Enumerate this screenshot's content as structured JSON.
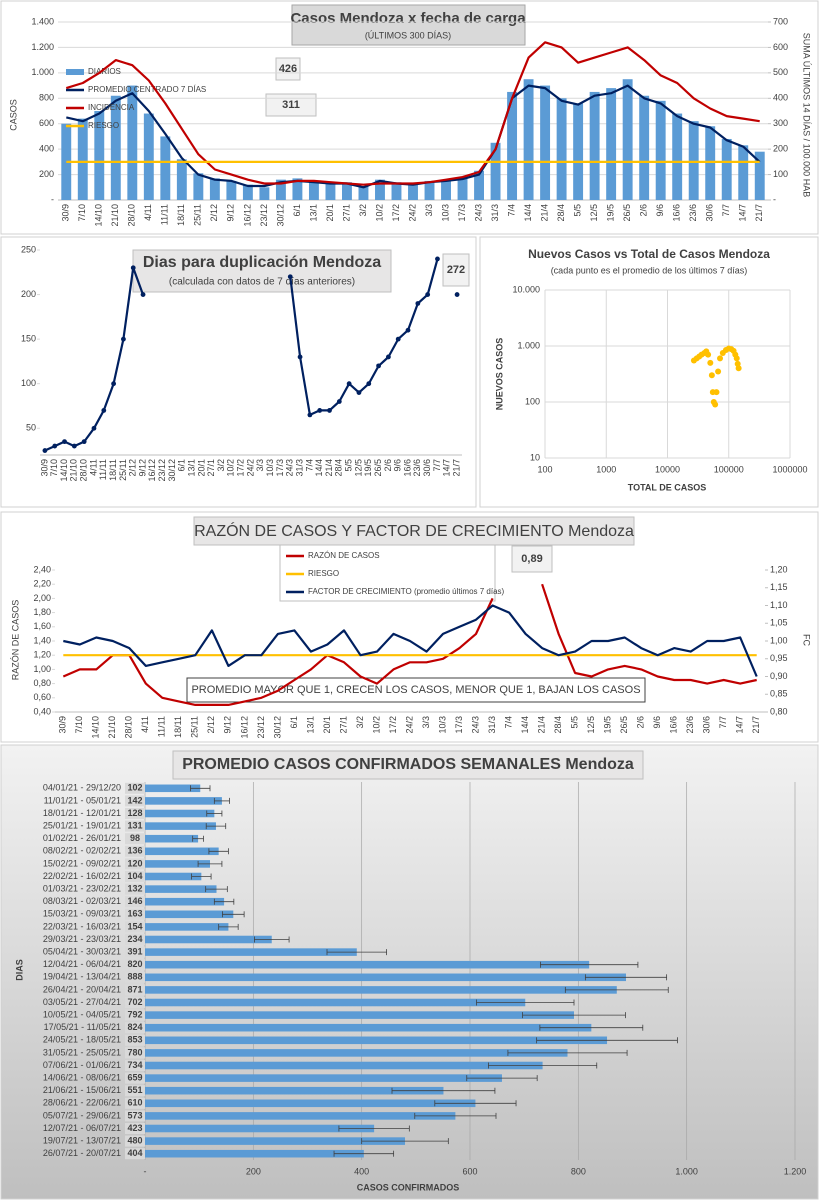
{
  "chart_data": [
    {
      "type": "combo",
      "title": "Casos Mendoza x fecha de carga",
      "subtitle": "(ÚLTIMOS 300 DÍAS)",
      "y_label": "CASOS",
      "y2_label": "SUMA ÚLTIMOS 14 DÍAS / 100.000 HAB",
      "annotations": [
        "426",
        "311"
      ],
      "categories": [
        "30/9",
        "7/10",
        "14/10",
        "21/10",
        "28/10",
        "4/11",
        "11/11",
        "18/11",
        "25/11",
        "2/12",
        "9/12",
        "16/12",
        "23/12",
        "30/12",
        "6/1",
        "13/1",
        "20/1",
        "27/1",
        "3/2",
        "10/2",
        "17/2",
        "24/2",
        "3/3",
        "10/3",
        "17/3",
        "24/3",
        "31/3",
        "7/4",
        "14/4",
        "21/4",
        "28/4",
        "5/5",
        "12/5",
        "19/5",
        "26/5",
        "2/6",
        "9/6",
        "16/6",
        "23/6",
        "30/6",
        "7/7",
        "14/7",
        "21/7"
      ],
      "series": [
        {
          "name": "DIARIOS",
          "type": "bar",
          "color": "#5b9bd5",
          "values": [
            600,
            640,
            700,
            820,
            900,
            680,
            500,
            320,
            210,
            170,
            150,
            120,
            100,
            160,
            170,
            150,
            130,
            140,
            110,
            160,
            140,
            130,
            150,
            160,
            180,
            230,
            450,
            850,
            950,
            900,
            800,
            760,
            850,
            880,
            950,
            820,
            780,
            680,
            620,
            580,
            480,
            430,
            380
          ]
        },
        {
          "name": "PROMEDIO CENTRADO 7 DÍAS",
          "type": "line",
          "color": "#002060",
          "values": [
            650,
            620,
            680,
            780,
            840,
            700,
            520,
            330,
            200,
            160,
            150,
            110,
            110,
            140,
            150,
            140,
            130,
            130,
            100,
            150,
            130,
            120,
            140,
            150,
            165,
            200,
            400,
            800,
            900,
            880,
            780,
            750,
            820,
            840,
            900,
            800,
            760,
            660,
            600,
            570,
            470,
            420,
            300
          ]
        },
        {
          "name": "INCIDENCIA",
          "type": "line",
          "color": "#c00000",
          "axis": "y2",
          "values": [
            440,
            460,
            500,
            550,
            530,
            470,
            380,
            280,
            180,
            120,
            100,
            80,
            65,
            65,
            75,
            75,
            70,
            65,
            60,
            65,
            65,
            65,
            70,
            80,
            90,
            110,
            200,
            400,
            560,
            620,
            600,
            540,
            560,
            580,
            600,
            550,
            490,
            460,
            400,
            360,
            330,
            320,
            310
          ]
        },
        {
          "name": "RIESGO",
          "type": "line",
          "color": "#ffc000",
          "axis": "y2",
          "values": [
            150,
            150,
            150,
            150,
            150,
            150,
            150,
            150,
            150,
            150,
            150,
            150,
            150,
            150,
            150,
            150,
            150,
            150,
            150,
            150,
            150,
            150,
            150,
            150,
            150,
            150,
            150,
            150,
            150,
            150,
            150,
            150,
            150,
            150,
            150,
            150,
            150,
            150,
            150,
            150,
            150,
            150,
            150
          ]
        }
      ],
      "ylim": [
        0,
        1400
      ],
      "yticks": [
        {
          "value": 0,
          "label": "-"
        },
        200,
        400,
        600,
        800,
        {
          "value": 1000,
          "label": "1.000"
        },
        {
          "value": 1200,
          "label": "1.200"
        },
        {
          "value": 1400,
          "label": "1.400"
        }
      ],
      "y2lim": [
        0,
        700
      ],
      "y2ticks": [
        {
          "value": 0,
          "label": "-"
        },
        100,
        200,
        300,
        400,
        500,
        600,
        700
      ],
      "grid": true
    },
    {
      "type": "line",
      "title": "Dias para duplicación Mendoza",
      "subtitle": "(calculada con datos de 7 días anteriores)",
      "annotations": [
        "272"
      ],
      "categories": [
        "30/9",
        "7/10",
        "14/10",
        "21/10",
        "28/10",
        "4/11",
        "11/11",
        "18/11",
        "25/11",
        "2/12",
        "9/12",
        "16/12",
        "23/12",
        "30/12",
        "6/1",
        "13/1",
        "20/1",
        "27/1",
        "3/2",
        "10/2",
        "17/2",
        "24/2",
        "3/3",
        "10/3",
        "17/3",
        "24/3",
        "31/3",
        "7/4",
        "14/4",
        "21/4",
        "28/4",
        "5/5",
        "12/5",
        "19/5",
        "26/5",
        "2/6",
        "9/6",
        "16/6",
        "23/6",
        "30/6",
        "7/7",
        "14/7",
        "21/7"
      ],
      "values": [
        25,
        30,
        35,
        30,
        35,
        50,
        70,
        100,
        150,
        230,
        200,
        null,
        null,
        null,
        null,
        null,
        null,
        null,
        null,
        null,
        null,
        null,
        null,
        null,
        null,
        220,
        130,
        65,
        70,
        70,
        80,
        100,
        90,
        100,
        120,
        130,
        150,
        160,
        190,
        200,
        240,
        null,
        200
      ],
      "color": "#002060",
      "markers": true,
      "ylim": [
        20,
        250
      ],
      "yticks": [
        50,
        100,
        150,
        200,
        250
      ],
      "grid": false
    },
    {
      "type": "scatter",
      "title": "Nuevos Casos vs Total de Casos Mendoza",
      "subtitle": "(cada punto es el promedio de los últimos 7 días)",
      "x_label": "TOTAL DE CASOS",
      "y_label": "NUEVOS CASOS",
      "x": [
        27000,
        30000,
        33000,
        36000,
        40000,
        43000,
        46000,
        50000,
        53000,
        55000,
        57000,
        60000,
        63000,
        67000,
        72000,
        80000,
        90000,
        100000,
        110000,
        120000,
        128000,
        135000,
        140000,
        145000
      ],
      "values": [
        550,
        600,
        650,
        700,
        750,
        800,
        700,
        500,
        300,
        150,
        100,
        90,
        150,
        350,
        600,
        750,
        850,
        900,
        880,
        820,
        700,
        600,
        480,
        400
      ],
      "color": "#ffc000",
      "xlim": [
        100,
        1000000
      ],
      "ylim": [
        10,
        10000
      ],
      "xticks": [
        100,
        1000,
        10000,
        100000,
        1000000
      ],
      "yticks": [
        10,
        100,
        {
          "value": 1000,
          "label": "1.000"
        },
        {
          "value": 10000,
          "label": "10.000"
        }
      ],
      "log_x": true,
      "log_y": true,
      "grid": true
    },
    {
      "type": "line",
      "title": "RAZÓN DE CASOS Y FACTOR DE CRECIMIENTO Mendoza",
      "y_label": "RAZÓN DE CASOS",
      "y2_label": "FC",
      "annotations": [
        "0,89",
        "PROMEDIO MAYOR QUE 1, CRECEN LOS CASOS, MENOR QUE 1, BAJAN LOS CASOS"
      ],
      "categories": [
        "30/9",
        "7/10",
        "14/10",
        "21/10",
        "28/10",
        "4/11",
        "11/11",
        "18/11",
        "25/11",
        "2/12",
        "9/12",
        "16/12",
        "23/12",
        "30/12",
        "6/1",
        "13/1",
        "20/1",
        "27/1",
        "3/2",
        "10/2",
        "17/2",
        "24/2",
        "3/3",
        "10/3",
        "17/3",
        "24/3",
        "31/3",
        "7/4",
        "14/4",
        "21/4",
        "28/4",
        "5/5",
        "12/5",
        "19/5",
        "26/5",
        "2/6",
        "9/6",
        "16/6",
        "23/6",
        "30/6",
        "7/7",
        "14/7",
        "21/7"
      ],
      "series": [
        {
          "name": "RAZÓN DE CASOS",
          "color": "#c00000",
          "values": [
            0.9,
            1.0,
            1.0,
            1.2,
            1.2,
            0.8,
            0.6,
            0.55,
            0.5,
            0.5,
            0.5,
            0.55,
            0.6,
            0.7,
            0.85,
            1.0,
            1.2,
            1.1,
            0.9,
            0.8,
            1.0,
            1.1,
            1.1,
            1.15,
            1.3,
            1.5,
            2.0,
            null,
            null,
            2.2,
            1.5,
            0.95,
            0.9,
            1.0,
            1.05,
            1.0,
            0.9,
            0.85,
            0.85,
            0.8,
            0.85,
            0.8,
            0.85
          ]
        },
        {
          "name": "RIESGO",
          "color": "#ffc000",
          "values": [
            1.2,
            1.2,
            1.2,
            1.2,
            1.2,
            1.2,
            1.2,
            1.2,
            1.2,
            1.2,
            1.2,
            1.2,
            1.2,
            1.2,
            1.2,
            1.2,
            1.2,
            1.2,
            1.2,
            1.2,
            1.2,
            1.2,
            1.2,
            1.2,
            1.2,
            1.2,
            1.2,
            1.2,
            1.2,
            1.2,
            1.2,
            1.2,
            1.2,
            1.2,
            1.2,
            1.2,
            1.2,
            1.2,
            1.2,
            1.2,
            1.2,
            1.2,
            1.2
          ]
        },
        {
          "name": "FACTOR DE CRECIMIENTO (promedio últimos 7 días)",
          "color": "#002060",
          "axis": "y2",
          "values": [
            1.0,
            0.99,
            1.01,
            1.0,
            0.98,
            0.93,
            0.94,
            0.95,
            0.96,
            1.03,
            0.93,
            0.96,
            0.96,
            1.02,
            1.03,
            0.97,
            0.99,
            1.03,
            0.96,
            0.97,
            1.02,
            1.0,
            0.97,
            1.02,
            1.04,
            1.06,
            1.1,
            1.08,
            1.02,
            0.98,
            0.96,
            0.97,
            1.0,
            1.0,
            1.01,
            0.98,
            0.96,
            0.98,
            0.97,
            1.0,
            1.0,
            1.01,
            0.9
          ]
        }
      ],
      "ylim": [
        0.4,
        2.4
      ],
      "yticks": [
        {
          "value": 0.4,
          "label": "0,40"
        },
        {
          "value": 0.6,
          "label": "0,60"
        },
        {
          "value": 0.8,
          "label": "0,80"
        },
        {
          "value": 1.0,
          "label": "1,00"
        },
        {
          "value": 1.2,
          "label": "1,20"
        },
        {
          "value": 1.4,
          "label": "1,40"
        },
        {
          "value": 1.6,
          "label": "1,60"
        },
        {
          "value": 1.8,
          "label": "1,80"
        },
        {
          "value": 2.0,
          "label": "2,00"
        },
        {
          "value": 2.2,
          "label": "2,20"
        },
        {
          "value": 2.4,
          "label": "2,40"
        }
      ],
      "y2lim": [
        0.8,
        1.2
      ],
      "y2ticks": [
        {
          "value": 0.8,
          "label": "0,80"
        },
        {
          "value": 0.85,
          "label": "0,85"
        },
        {
          "value": 0.9,
          "label": "0,90"
        },
        {
          "value": 0.95,
          "label": "0,95"
        },
        {
          "value": 1.0,
          "label": "1,00"
        },
        {
          "value": 1.05,
          "label": "1,05"
        },
        {
          "value": 1.1,
          "label": "1,10"
        },
        {
          "value": 1.15,
          "label": "1,15"
        },
        {
          "value": 1.2,
          "label": "1,20"
        }
      ],
      "grid": false
    },
    {
      "type": "bar",
      "orientation": "horizontal",
      "title": "PROMEDIO CASOS CONFIRMADOS SEMANALES Mendoza",
      "x_label": "CASOS CONFIRMADOS",
      "y_label": "DIAS",
      "categories": [
        "04/01/21 - 29/12/20",
        "11/01/21 - 05/01/21",
        "18/01/21 - 12/01/21",
        "25/01/21 - 19/01/21",
        "01/02/21 - 26/01/21",
        "08/02/21 - 02/02/21",
        "15/02/21 - 09/02/21",
        "22/02/21 - 16/02/21",
        "01/03/21 - 23/02/21",
        "08/03/21 - 02/03/21",
        "15/03/21 - 09/03/21",
        "22/03/21 - 16/03/21",
        "29/03/21 - 23/03/21",
        "05/04/21 - 30/03/21",
        "12/04/21 - 06/04/21",
        "19/04/21 - 13/04/21",
        "26/04/21 - 20/04/21",
        "03/05/21 - 27/04/21",
        "10/05/21 - 04/05/21",
        "17/05/21 - 11/05/21",
        "24/05/21 - 18/05/21",
        "31/05/21 - 25/05/21",
        "07/06/21 - 01/06/21",
        "14/06/21 - 08/06/21",
        "21/06/21 - 15/06/21",
        "28/06/21 - 22/06/21",
        "05/07/21 - 29/06/21",
        "12/07/21 - 06/07/21",
        "19/07/21 - 13/07/21",
        "26/07/21 - 20/07/21"
      ],
      "values": [
        102,
        142,
        128,
        131,
        98,
        136,
        120,
        104,
        132,
        146,
        163,
        154,
        234,
        391,
        820,
        888,
        871,
        702,
        792,
        824,
        853,
        780,
        734,
        659,
        551,
        610,
        573,
        423,
        480,
        404
      ],
      "errors": [
        18,
        14,
        14,
        18,
        10,
        18,
        22,
        18,
        20,
        18,
        20,
        18,
        32,
        55,
        90,
        75,
        95,
        90,
        95,
        95,
        130,
        110,
        100,
        65,
        95,
        75,
        75,
        65,
        80,
        55
      ],
      "color": "#5b9bd5",
      "xlim": [
        0,
        1200
      ],
      "xticks": [
        {
          "value": 0,
          "label": "-"
        },
        200,
        400,
        600,
        800,
        {
          "value": 1000,
          "label": "1.000"
        },
        {
          "value": 1200,
          "label": "1.200"
        }
      ],
      "grid": true
    }
  ]
}
